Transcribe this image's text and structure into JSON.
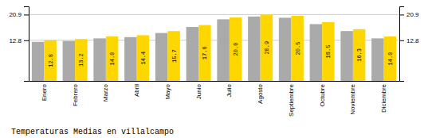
{
  "chart_data": {
    "type": "bar",
    "title": "Temperaturas Medias en villalcampo",
    "categories": [
      "Enero",
      "Febrero",
      "Marzo",
      "Abril",
      "Mayo",
      "Junio",
      "Julio",
      "Agosto",
      "Septiembre",
      "Octubre",
      "Noviembre",
      "Diciembre"
    ],
    "series": [
      {
        "color": "#AAAAAA",
        "data_labels": false,
        "values": [
          12.3,
          12.6,
          13.4,
          13.8,
          15.1,
          17.0,
          19.4,
          20.3,
          19.9,
          17.9,
          15.7,
          13.4
        ]
      },
      {
        "color": "#FFD700",
        "data_labels": true,
        "values": [
          12.8,
          13.2,
          14.0,
          14.4,
          15.7,
          17.6,
          20.0,
          20.9,
          20.5,
          18.5,
          16.3,
          14.0
        ],
        "value_labels": [
          "12.8",
          "13.2",
          "14.0",
          "14.4",
          "15.7",
          "17.6",
          "20.0",
          "20.9",
          "20.5",
          "18.5",
          "16.3",
          "14.0"
        ]
      }
    ],
    "ylim": [
      0,
      23.5
    ],
    "yticks": [
      12.8,
      20.9
    ],
    "grid": true
  }
}
